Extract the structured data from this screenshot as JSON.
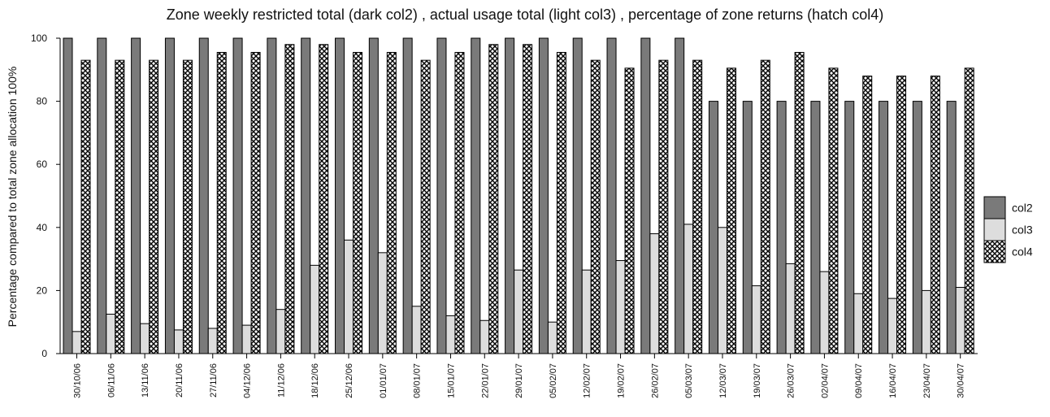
{
  "chart_data": {
    "type": "bar",
    "title": "Zone weekly restricted total (dark col2) , actual usage total (light col3) , percentage of zone returns (hatch col4)",
    "xlabel": "",
    "ylabel": "Percentage compared to total zone allocation 100%",
    "ylim": [
      0,
      100
    ],
    "yticks": [
      "0",
      "20",
      "40",
      "60",
      "80",
      "100"
    ],
    "grid": false,
    "legend_position": "right",
    "categories": [
      "30/10/06",
      "06/11/06",
      "13/11/06",
      "20/11/06",
      "27/11/06",
      "04/12/06",
      "11/12/06",
      "18/12/06",
      "25/12/06",
      "01/01/07",
      "08/01/07",
      "15/01/07",
      "22/01/07",
      "29/01/07",
      "05/02/07",
      "12/02/07",
      "19/02/07",
      "26/02/07",
      "05/03/07",
      "12/03/07",
      "19/03/07",
      "26/03/07",
      "02/04/07",
      "09/04/07",
      "16/04/07",
      "23/04/07",
      "30/04/07"
    ],
    "series": [
      {
        "name": "col2",
        "color": "#7a7a7a",
        "pattern": "solid-dark",
        "values": [
          100,
          100,
          100,
          100,
          100,
          100,
          100,
          100,
          100,
          100,
          100,
          100,
          100,
          100,
          100,
          100,
          100,
          100,
          100,
          80,
          80,
          80,
          80,
          80,
          80,
          80,
          80
        ]
      },
      {
        "name": "col3",
        "color": "#dddddd",
        "pattern": "solid-light",
        "values": [
          7,
          12.5,
          9.5,
          7.5,
          8,
          9,
          14,
          28,
          36,
          32,
          15,
          12,
          10.5,
          26.5,
          10,
          26.5,
          29.5,
          38,
          41,
          40,
          21.5,
          28.5,
          26,
          19,
          17.5,
          20,
          21
        ]
      },
      {
        "name": "col4",
        "color": "#000000",
        "pattern": "crosshatch",
        "values": [
          93,
          93,
          93,
          93,
          95.5,
          95.5,
          98,
          98,
          95.5,
          95.5,
          93,
          95.5,
          98,
          98,
          95.5,
          93,
          90.5,
          93,
          93,
          90.5,
          93,
          95.5,
          90.5,
          88,
          88,
          88,
          90.5
        ]
      }
    ]
  }
}
